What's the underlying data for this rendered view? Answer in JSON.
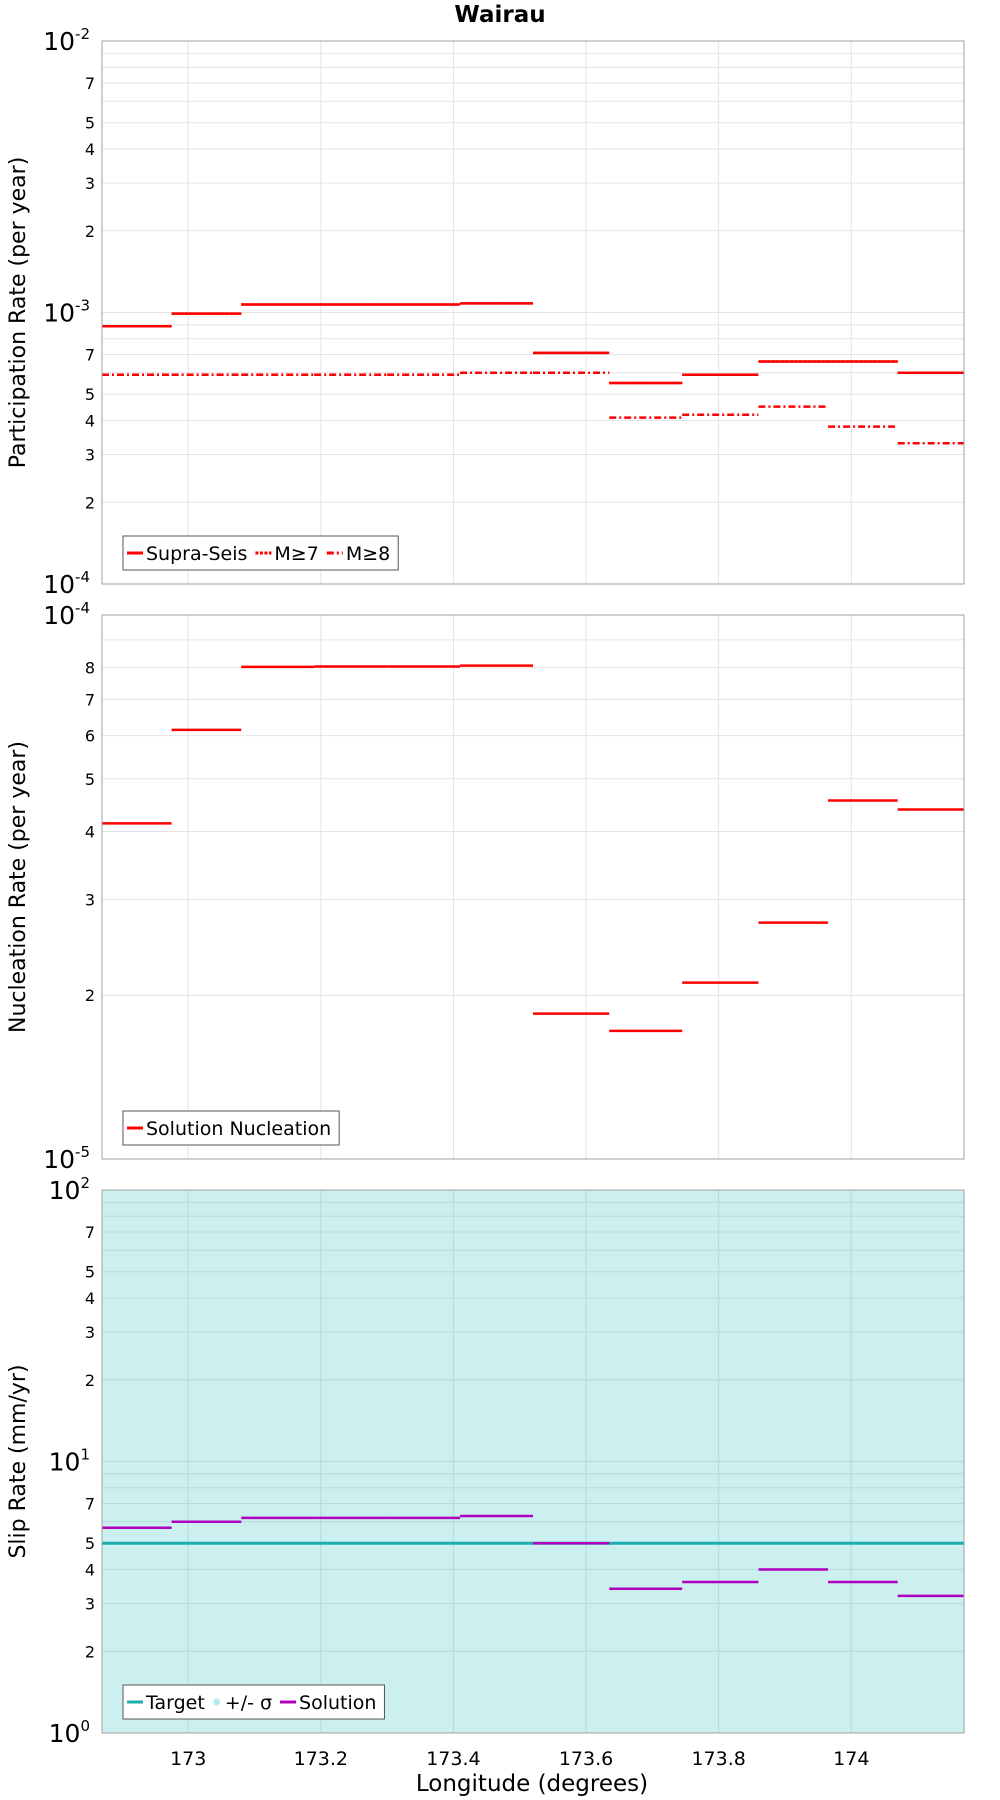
{
  "chart_data": {
    "type": "line",
    "title": "Wairau",
    "xlabel": "Longitude (degrees)",
    "x_ticks": [
      {
        "value": 173.0,
        "label": "173"
      },
      {
        "value": 173.2,
        "label": "173.2"
      },
      {
        "value": 173.4,
        "label": "173.4"
      },
      {
        "value": 173.6,
        "label": "173.6"
      },
      {
        "value": 173.8,
        "label": "173.8"
      },
      {
        "value": 174.0,
        "label": "174"
      }
    ],
    "xlim": [
      172.87,
      174.17
    ],
    "segments": [
      [
        172.87,
        172.975
      ],
      [
        172.975,
        173.08
      ],
      [
        173.08,
        173.19
      ],
      [
        173.19,
        173.3
      ],
      [
        173.3,
        173.41
      ],
      [
        173.41,
        173.52
      ],
      [
        173.52,
        173.635
      ],
      [
        173.635,
        173.745
      ],
      [
        173.745,
        173.86
      ],
      [
        173.86,
        173.965
      ],
      [
        173.965,
        174.07
      ],
      [
        174.07,
        174.17
      ]
    ],
    "panels": [
      {
        "ylabel": "Participation Rate (per year)",
        "yscale": "log",
        "ylim": [
          0.0001,
          0.01
        ],
        "major_ticks": [
          {
            "value": 0.01,
            "base": "10",
            "exp": "-2"
          },
          {
            "value": 0.001,
            "base": "10",
            "exp": "-3"
          },
          {
            "value": 0.0001,
            "base": "10",
            "exp": "-4"
          }
        ],
        "minor_ticks": [
          {
            "value": 0.007,
            "label": "7"
          },
          {
            "value": 0.005,
            "label": "5"
          },
          {
            "value": 0.004,
            "label": "4"
          },
          {
            "value": 0.003,
            "label": "3"
          },
          {
            "value": 0.002,
            "label": "2"
          },
          {
            "value": 0.0007,
            "label": "7"
          },
          {
            "value": 0.0005,
            "label": "5"
          },
          {
            "value": 0.0004,
            "label": "4"
          },
          {
            "value": 0.0003,
            "label": "3"
          },
          {
            "value": 0.0002,
            "label": "2"
          }
        ],
        "series": [
          {
            "name": "Supra-Seis",
            "color": "#ff0000",
            "style": "solid",
            "values": [
              0.00089,
              0.00099,
              0.00107,
              0.00107,
              0.00107,
              0.00108,
              0.00071,
              0.00055,
              0.00059,
              0.00066,
              0.00066,
              0.0006
            ]
          },
          {
            "name": "M≥7",
            "color": "#ff0000",
            "style": "dotted",
            "values": [
              0.00089,
              0.00099,
              0.00107,
              0.00107,
              0.00107,
              0.00108,
              0.00071,
              0.00055,
              0.00059,
              0.00066,
              0.00066,
              0.0006
            ]
          },
          {
            "name": "M≥8",
            "color": "#ff0000",
            "style": "dashdot",
            "values": [
              0.00059,
              0.00059,
              0.00059,
              0.00059,
              0.00059,
              0.0006,
              0.0006,
              0.00041,
              0.00042,
              0.00045,
              0.00038,
              0.00033
            ]
          }
        ],
        "legend": [
          "Supra-Seis",
          "M≥7",
          "M≥8"
        ],
        "legend_position": "bottom-left"
      },
      {
        "ylabel": "Nucleation Rate (per year)",
        "yscale": "log",
        "ylim": [
          1e-05,
          0.0001
        ],
        "major_ticks": [
          {
            "value": 0.0001,
            "base": "10",
            "exp": "-4"
          },
          {
            "value": 1e-05,
            "base": "10",
            "exp": "-5"
          }
        ],
        "minor_ticks": [
          {
            "value": 8e-05,
            "label": "8"
          },
          {
            "value": 7e-05,
            "label": "7"
          },
          {
            "value": 6e-05,
            "label": "6"
          },
          {
            "value": 5e-05,
            "label": "5"
          },
          {
            "value": 4e-05,
            "label": "4"
          },
          {
            "value": 3e-05,
            "label": "3"
          },
          {
            "value": 2e-05,
            "label": "2"
          }
        ],
        "series": [
          {
            "name": "Solution Nucleation",
            "color": "#ff0000",
            "style": "solid",
            "values": [
              4.14e-05,
              6.15e-05,
              8.03e-05,
              8.04e-05,
              8.04e-05,
              8.07e-05,
              1.85e-05,
              1.72e-05,
              2.11e-05,
              2.72e-05,
              4.56e-05,
              4.39e-05
            ]
          }
        ],
        "legend": [
          "Solution Nucleation"
        ],
        "legend_position": "bottom-left"
      },
      {
        "ylabel": "Slip Rate (mm/yr)",
        "yscale": "log",
        "ylim": [
          1,
          100
        ],
        "major_ticks": [
          {
            "value": 100,
            "base": "10",
            "exp": "2"
          },
          {
            "value": 10,
            "base": "10",
            "exp": "1"
          },
          {
            "value": 1,
            "base": "10",
            "exp": "0"
          }
        ],
        "minor_ticks": [
          {
            "value": 70,
            "label": "7"
          },
          {
            "value": 50,
            "label": "5"
          },
          {
            "value": 40,
            "label": "4"
          },
          {
            "value": 30,
            "label": "3"
          },
          {
            "value": 20,
            "label": "2"
          },
          {
            "value": 7,
            "label": "7"
          },
          {
            "value": 5,
            "label": "5"
          },
          {
            "value": 4,
            "label": "4"
          },
          {
            "value": 3,
            "label": "3"
          },
          {
            "value": 2,
            "label": "2"
          }
        ],
        "band": {
          "name": "+/- σ",
          "color": "#c3ecec",
          "range": [
            1,
            100
          ]
        },
        "target": {
          "name": "Target",
          "color": "#1aaeae",
          "value": 5
        },
        "series": [
          {
            "name": "Solution",
            "color": "#b000c0",
            "style": "solid",
            "values": [
              5.7,
              6.0,
              6.2,
              6.2,
              6.2,
              6.3,
              5.0,
              3.4,
              3.6,
              4.0,
              3.6,
              3.2
            ]
          }
        ],
        "legend": [
          "Target",
          "+/- σ",
          "Solution"
        ],
        "legend_position": "bottom-left"
      }
    ]
  }
}
